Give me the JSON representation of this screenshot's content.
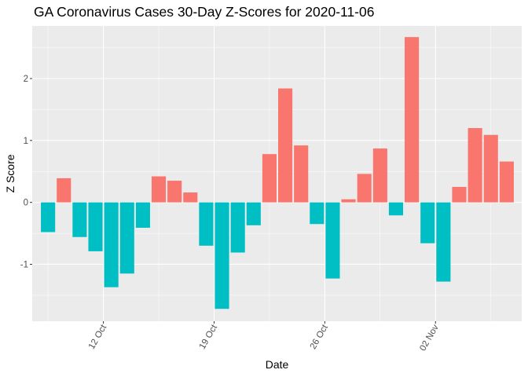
{
  "chart_data": {
    "type": "bar",
    "title": "GA Coronavirus Cases 30-Day Z-Scores for 2020-11-06",
    "xlabel": "Date",
    "ylabel": "Z Score",
    "ylim": [
      -1.92,
      2.85
    ],
    "yticks": [
      -1,
      0,
      1,
      2
    ],
    "ytick_labels": [
      "-1",
      "0",
      "1",
      "2"
    ],
    "xtick_labels": [
      "12 Oct",
      "19 Oct",
      "26 Oct",
      "02 Nov"
    ],
    "xtick_positions": [
      4.5,
      11.5,
      18.5,
      25.5
    ],
    "legend": "none",
    "grid": true,
    "colors": {
      "positive": "#f8766d",
      "negative": "#00bfc4",
      "panel": "#ebebeb",
      "grid": "#ffffff"
    },
    "dates": [
      "2020-10-08",
      "2020-10-09",
      "2020-10-10",
      "2020-10-11",
      "2020-10-12",
      "2020-10-13",
      "2020-10-14",
      "2020-10-15",
      "2020-10-16",
      "2020-10-17",
      "2020-10-18",
      "2020-10-19",
      "2020-10-20",
      "2020-10-21",
      "2020-10-22",
      "2020-10-23",
      "2020-10-24",
      "2020-10-25",
      "2020-10-26",
      "2020-10-27",
      "2020-10-28",
      "2020-10-29",
      "2020-10-30",
      "2020-10-31",
      "2020-11-01",
      "2020-11-02",
      "2020-11-03",
      "2020-11-04",
      "2020-11-05",
      "2020-11-06"
    ],
    "values": [
      -0.48,
      0.39,
      -0.56,
      -0.79,
      -1.37,
      -1.15,
      -0.41,
      0.42,
      0.35,
      0.16,
      -0.7,
      -1.72,
      -0.81,
      -0.37,
      0.78,
      1.84,
      0.92,
      -0.35,
      -1.23,
      0.05,
      0.46,
      0.87,
      -0.21,
      2.67,
      -0.66,
      -1.28,
      0.25,
      1.2,
      1.09,
      0.66
    ]
  }
}
